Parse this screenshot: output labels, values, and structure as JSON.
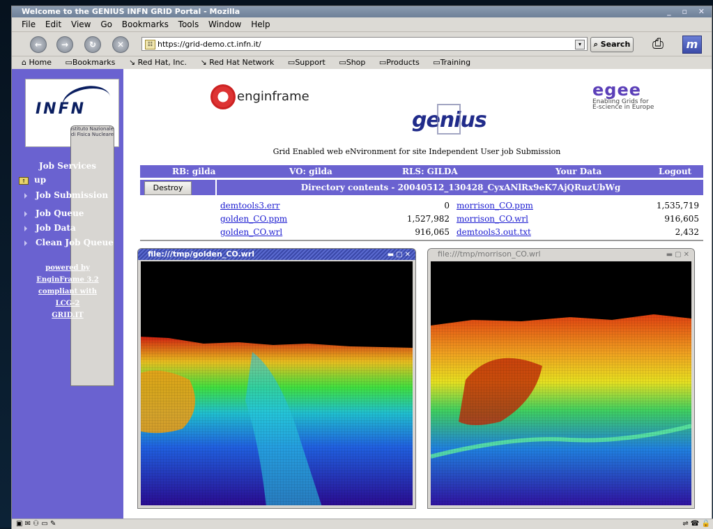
{
  "window": {
    "title": "Welcome to the GENIUS INFN GRID Portal - Mozilla"
  },
  "menubar": {
    "items": [
      "File",
      "Edit",
      "View",
      "Go",
      "Bookmarks",
      "Tools",
      "Window",
      "Help"
    ]
  },
  "navbar": {
    "url": "https://grid-demo.ct.infn.it/",
    "search_label": "Search"
  },
  "bookmarks": {
    "items": [
      "Home",
      "Bookmarks",
      "Red Hat, Inc.",
      "Red Hat Network",
      "Support",
      "Shop",
      "Products",
      "Training"
    ]
  },
  "sidebar": {
    "logo": {
      "name": "INFN",
      "subtitle_line1": "Istituto Nazionale",
      "subtitle_line2": "di Fisica Nucleare"
    },
    "heading": "Job Services",
    "items": [
      "up",
      "Job Submission",
      "Job Queue",
      "Job Data",
      "Clean Job Queue"
    ],
    "powered": [
      "powered by",
      "EnginFrame 3.2",
      "compliant with",
      "LCG-2",
      "GRID.IT"
    ]
  },
  "header": {
    "enginframe_logo": "enginframe",
    "genius_logo": "genius",
    "egee_logo": "egee",
    "egee_tagline_line1": "Enabling Grids for",
    "egee_tagline_line2": "E-science in Europe",
    "tagline": "Grid Enabled web eNvironment for site Independent User job Submission"
  },
  "infobar": {
    "rb": "RB: gilda",
    "vo": "VO: gilda",
    "rls": "RLS: GILDA",
    "your_data": "Your Data",
    "logout": "Logout"
  },
  "directory": {
    "destroy_label": "Destroy",
    "title": "Directory contents - 20040512_130428_CyxANlRx9eK7AjQRuzUbWg",
    "rows": [
      {
        "left_name": "demtools3.err",
        "left_size": "0",
        "right_name": "morrison_CO.ppm",
        "right_size": "1,535,719"
      },
      {
        "left_name": "golden_CO.ppm",
        "left_size": "1,527,982",
        "right_name": "morrison_CO.wrl",
        "right_size": "916,605"
      },
      {
        "left_name": "golden_CO.wrl",
        "left_size": "916,065",
        "right_name": "demtools3.out.txt",
        "right_size": "2,432"
      }
    ]
  },
  "subwindows": {
    "left_title": "file:///tmp/golden_CO.wrl",
    "right_title": "file:///tmp/morrison_CO.wrl"
  }
}
